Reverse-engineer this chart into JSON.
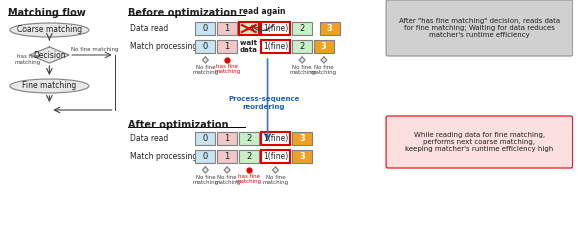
{
  "bg_color": "#ffffff",
  "flow_title": "Matching flow",
  "before_title": "Before optimization",
  "after_title": "After optimization",
  "before_dr_label": "Data read",
  "before_mp_label": "Match processing",
  "after_dr_label": "Data read",
  "after_mp_label": "Match processing",
  "read_again_label": "read again",
  "wait_label": "wait for\ndata",
  "reorder_label": "Process-sequence\nreordering",
  "gray_box_text": "After \"has fine matching\" decision, reads data\nfor fine matching; Waiting for data reduces\nmatcher's runtime efficiency",
  "pink_box_text": "While reading data for fine matching,\nperforms next coarse matching,\nkeeping matcher's runtime efficiency high",
  "colors": {
    "light_blue": "#c8e4f0",
    "light_pink": "#f0c8c8",
    "light_green": "#c8f0c8",
    "orange": "#f0a020",
    "red_border": "#e00000",
    "gray_bg": "#d0d0d0",
    "pink_bg": "#fce0e0",
    "blue_arrow": "#4070c0",
    "red_dot": "#e00000",
    "text_dark": "#202020",
    "text_red": "#e00000",
    "text_blue": "#2060c0",
    "ellipse_fill": "#e8e8e8",
    "diamond_fill": "#e8e8e8"
  }
}
